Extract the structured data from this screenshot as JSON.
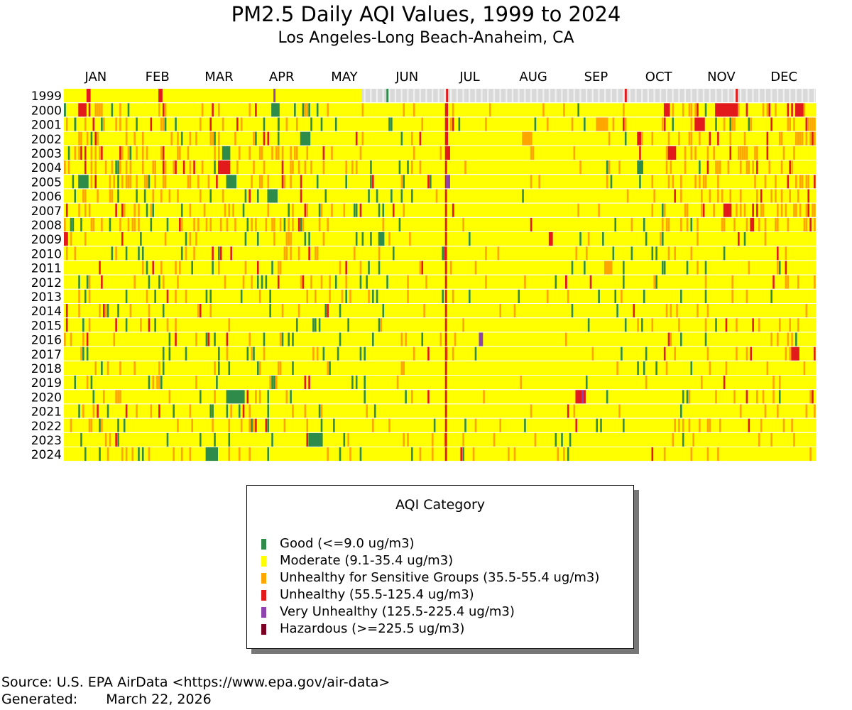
{
  "title": "PM2.5 Daily AQI Values, 1999 to 2024",
  "subtitle": "Los Angeles-Long Beach-Anaheim, CA",
  "legend": {
    "title": "AQI Category",
    "items": [
      {
        "label": "Good (<=9.0 ug/m3)",
        "color": "#2e8b4a"
      },
      {
        "label": "Moderate (9.1-35.4 ug/m3)",
        "color": "#ffff00"
      },
      {
        "label": "Unhealthy for Sensitive Groups (35.5-55.4 ug/m3)",
        "color": "#ffa500"
      },
      {
        "label": "Unhealthy (55.5-125.4 ug/m3)",
        "color": "#e31a1c"
      },
      {
        "label": "Very Unhealthy (125.5-225.4 ug/m3)",
        "color": "#8e44ad"
      },
      {
        "label": "Hazardous (>=225.5 ug/m3)",
        "color": "#7b0023"
      }
    ]
  },
  "footer": {
    "source": "Source: U.S. EPA AirData <https://www.epa.gov/air-data>",
    "generated_label": "Generated:",
    "generated_date": "March 22, 2026"
  },
  "chart_data": {
    "type": "heatmap",
    "title": "PM2.5 Daily AQI Values, 1999 to 2024",
    "subtitle": "Los Angeles-Long Beach-Anaheim, CA",
    "x_categories": [
      "JAN",
      "FEB",
      "MAR",
      "APR",
      "MAY",
      "JUN",
      "JUL",
      "AUG",
      "SEP",
      "OCT",
      "NOV",
      "DEC"
    ],
    "y_categories": [
      "1999",
      "2000",
      "2001",
      "2002",
      "2003",
      "2004",
      "2005",
      "2006",
      "2007",
      "2008",
      "2009",
      "2010",
      "2011",
      "2012",
      "2013",
      "2014",
      "2015",
      "2016",
      "2017",
      "2018",
      "2019",
      "2020",
      "2021",
      "2022",
      "2023",
      "2024"
    ],
    "base_category": "Moderate",
    "no_data_color": "#d9d9d9",
    "categories": [
      "Good",
      "Moderate",
      "Unhealthy for Sensitive Groups",
      "Unhealthy",
      "Very Unhealthy",
      "Hazardous"
    ],
    "colors": {
      "Good": "#2e8b4a",
      "Moderate": "#ffff00",
      "Unhealthy for Sensitive Groups": "#ffa500",
      "Unhealthy": "#e31a1c",
      "Very Unhealthy": "#8e44ad",
      "Hazardous": "#7b0023"
    },
    "notable_days": [
      {
        "year": "1999",
        "day_of_year": 1,
        "days": 145,
        "category": "Moderate"
      },
      {
        "year": "1999",
        "day_of_year": 12,
        "days": 2,
        "category": "Unhealthy"
      },
      {
        "year": "1999",
        "day_of_year": 47,
        "days": 2,
        "category": "Unhealthy"
      },
      {
        "year": "1999",
        "day_of_year": 103,
        "days": 1,
        "category": "Very Unhealthy"
      },
      {
        "year": "1999",
        "day_of_year": 158,
        "days": 1,
        "category": "Good"
      },
      {
        "year": "1999",
        "day_of_year": 187,
        "days": 1,
        "category": "Unhealthy"
      },
      {
        "year": "1999",
        "day_of_year": 274,
        "days": 1,
        "category": "Unhealthy"
      },
      {
        "year": "1999",
        "day_of_year": 328,
        "days": 1,
        "category": "Unhealthy"
      },
      {
        "year": "2000",
        "day_of_year": 1,
        "days": 1,
        "category": "Good"
      },
      {
        "year": "2000",
        "day_of_year": 8,
        "days": 4,
        "category": "Unhealthy"
      },
      {
        "year": "2000",
        "day_of_year": 102,
        "days": 4,
        "category": "Good"
      },
      {
        "year": "2000",
        "day_of_year": 187,
        "days": 1,
        "category": "Unhealthy"
      },
      {
        "year": "2000",
        "day_of_year": 293,
        "days": 3,
        "category": "Unhealthy"
      },
      {
        "year": "2000",
        "day_of_year": 318,
        "days": 11,
        "category": "Unhealthy"
      },
      {
        "year": "2000",
        "day_of_year": 357,
        "days": 4,
        "category": "Unhealthy"
      },
      {
        "year": "2001",
        "day_of_year": 6,
        "days": 1,
        "category": "Good"
      },
      {
        "year": "2001",
        "day_of_year": 105,
        "days": 1,
        "category": "Good"
      },
      {
        "year": "2001",
        "day_of_year": 187,
        "days": 1,
        "category": "Unhealthy"
      },
      {
        "year": "2001",
        "day_of_year": 260,
        "days": 5,
        "category": "Unhealthy for Sensitive Groups"
      },
      {
        "year": "2001",
        "day_of_year": 308,
        "days": 5,
        "category": "Unhealthy"
      },
      {
        "year": "2002",
        "day_of_year": 116,
        "days": 5,
        "category": "Good"
      },
      {
        "year": "2002",
        "day_of_year": 187,
        "days": 1,
        "category": "Unhealthy"
      },
      {
        "year": "2002",
        "day_of_year": 224,
        "days": 5,
        "category": "Unhealthy for Sensitive Groups"
      },
      {
        "year": "2002",
        "day_of_year": 280,
        "days": 2,
        "category": "Unhealthy"
      },
      {
        "year": "2003",
        "day_of_year": 78,
        "days": 4,
        "category": "Good"
      },
      {
        "year": "2003",
        "day_of_year": 187,
        "days": 2,
        "category": "Unhealthy"
      },
      {
        "year": "2003",
        "day_of_year": 295,
        "days": 4,
        "category": "Unhealthy"
      },
      {
        "year": "2004",
        "day_of_year": 76,
        "days": 6,
        "category": "Unhealthy"
      },
      {
        "year": "2004",
        "day_of_year": 280,
        "days": 3,
        "category": "Good"
      },
      {
        "year": "2005",
        "day_of_year": 8,
        "days": 5,
        "category": "Good"
      },
      {
        "year": "2005",
        "day_of_year": 80,
        "days": 5,
        "category": "Good"
      },
      {
        "year": "2005",
        "day_of_year": 187,
        "days": 2,
        "category": "Very Unhealthy"
      },
      {
        "year": "2006",
        "day_of_year": 100,
        "days": 5,
        "category": "Good"
      },
      {
        "year": "2007",
        "day_of_year": 190,
        "days": 1,
        "category": "Unhealthy"
      },
      {
        "year": "2007",
        "day_of_year": 322,
        "days": 4,
        "category": "Unhealthy"
      },
      {
        "year": "2008",
        "day_of_year": 335,
        "days": 2,
        "category": "Unhealthy"
      },
      {
        "year": "2009",
        "day_of_year": 1,
        "days": 2,
        "category": "Unhealthy"
      },
      {
        "year": "2009",
        "day_of_year": 154,
        "days": 3,
        "category": "Good"
      },
      {
        "year": "2009",
        "day_of_year": 237,
        "days": 2,
        "category": "Unhealthy"
      },
      {
        "year": "2011",
        "day_of_year": 264,
        "days": 4,
        "category": "Unhealthy for Sensitive Groups"
      },
      {
        "year": "2012",
        "day_of_year": 245,
        "days": 1,
        "category": "Unhealthy"
      },
      {
        "year": "2016",
        "day_of_year": 203,
        "days": 2,
        "category": "Very Unhealthy"
      },
      {
        "year": "2017",
        "day_of_year": 355,
        "days": 4,
        "category": "Unhealthy"
      },
      {
        "year": "2020",
        "day_of_year": 80,
        "days": 9,
        "category": "Good"
      },
      {
        "year": "2020",
        "day_of_year": 250,
        "days": 5,
        "category": "Unhealthy"
      },
      {
        "year": "2020",
        "day_of_year": 253,
        "days": 1,
        "category": "Very Unhealthy"
      },
      {
        "year": "2023",
        "day_of_year": 120,
        "days": 7,
        "category": "Good"
      },
      {
        "year": "2024",
        "day_of_year": 70,
        "days": 6,
        "category": "Good"
      }
    ]
  }
}
